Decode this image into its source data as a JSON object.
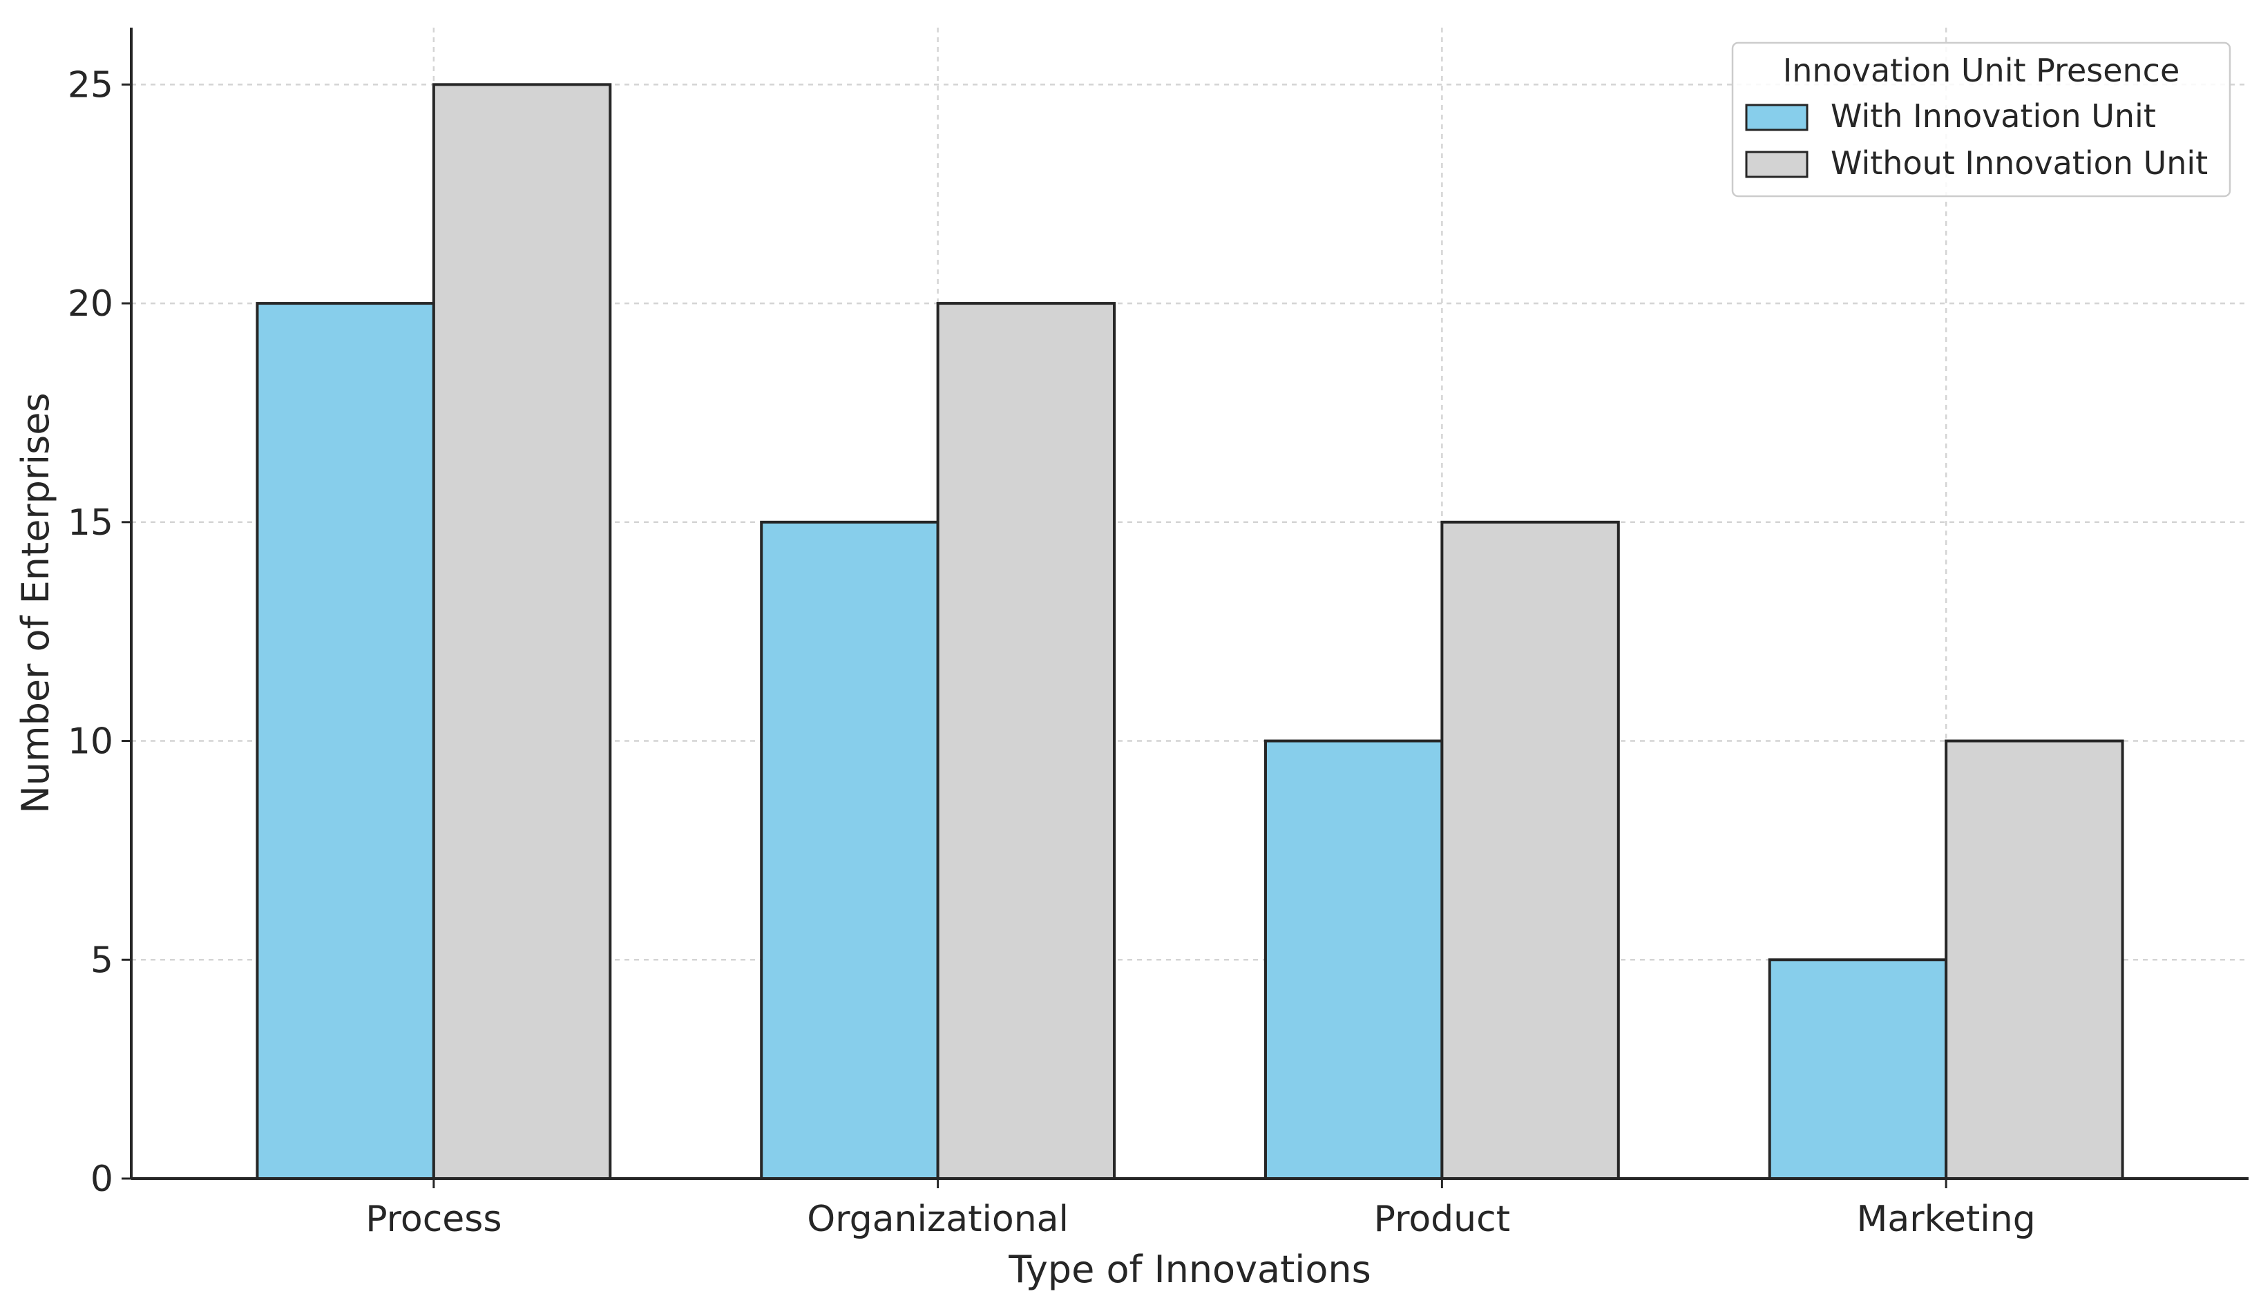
{
  "chart_data": {
    "type": "bar",
    "categories": [
      "Process",
      "Organizational",
      "Product",
      "Marketing"
    ],
    "series": [
      {
        "name": "With Innovation Unit",
        "values": [
          20,
          15,
          10,
          5
        ],
        "color": "#87ceeb"
      },
      {
        "name": "Without Innovation Unit",
        "values": [
          25,
          20,
          15,
          10
        ],
        "color": "#d3d3d3"
      }
    ],
    "xlabel": "Type of Innovations",
    "ylabel": "Number of Enterprises",
    "ylim": [
      0,
      26.3
    ],
    "yticks": [
      0,
      5,
      10,
      15,
      20,
      25
    ],
    "grid": true,
    "legend": {
      "title": "Innovation Unit Presence",
      "placement": "top-right"
    }
  }
}
